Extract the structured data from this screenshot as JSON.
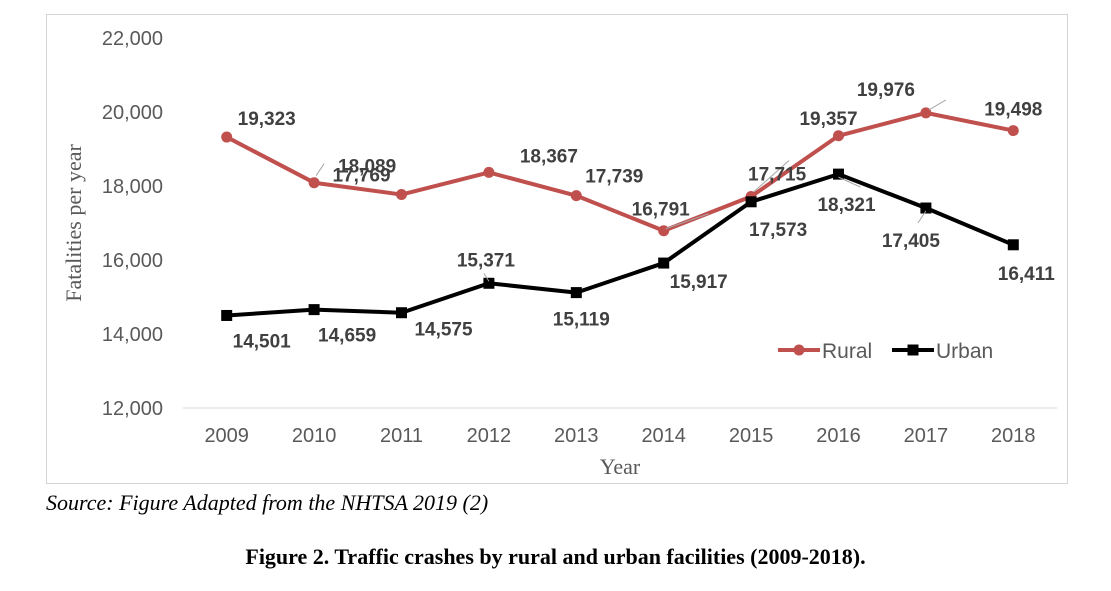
{
  "source_note": "Source: Figure Adapted from the NHTSA 2019 (2)",
  "caption": "Figure 2. Traffic crashes by rural and urban facilities (2009-2018).",
  "colors": {
    "rural": "#c0504d",
    "urban": "#000000",
    "grid": "#d9d9d9",
    "text": "#595959",
    "label": "#404040"
  },
  "chart_data": {
    "type": "line",
    "title": "",
    "xlabel": "Year",
    "ylabel": "Fatalities per year",
    "x": [
      "2009",
      "2010",
      "2011",
      "2012",
      "2013",
      "2014",
      "2015",
      "2016",
      "2017",
      "2018"
    ],
    "ylim": [
      12000,
      22000
    ],
    "yticks": [
      12000,
      14000,
      16000,
      18000,
      20000,
      22000
    ],
    "ytick_labels": [
      "12,000",
      "14,000",
      "16,000",
      "18,000",
      "20,000",
      "22,000"
    ],
    "grid": false,
    "legend_position": "bottom-right",
    "series": [
      {
        "name": "Rural",
        "marker": "circle",
        "values": [
          19323,
          18089,
          17769,
          18367,
          17739,
          16791,
          17715,
          19357,
          19976,
          19498
        ],
        "labels": [
          "19,323",
          "18,089",
          "17,769",
          "18,367",
          "17,739",
          "16,791",
          "17,715",
          "19,357",
          "19,976",
          "19,498"
        ]
      },
      {
        "name": "Urban",
        "marker": "square",
        "values": [
          14501,
          14659,
          14575,
          15371,
          15119,
          15917,
          17573,
          18321,
          17405,
          16411
        ],
        "labels": [
          "14,501",
          "14,659",
          "14,575",
          "15,371",
          "15,119",
          "15,917",
          "17,573",
          "18,321",
          "17,405",
          "16,411"
        ]
      }
    ]
  }
}
